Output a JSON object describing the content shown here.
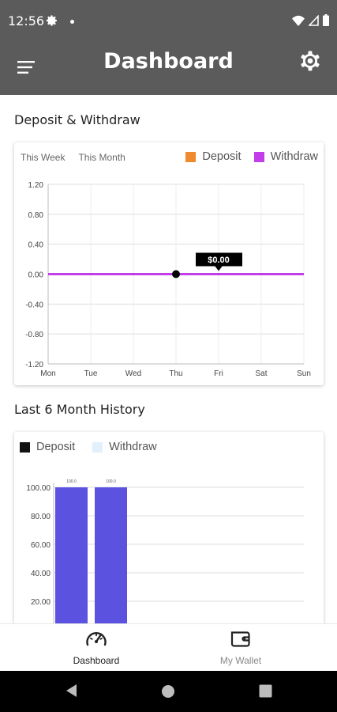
{
  "status_bar": {
    "time": "12:56"
  },
  "app_bar": {
    "title": "Dashboard"
  },
  "section1": {
    "title": "Deposit & Withdraw"
  },
  "card1": {
    "tabs": [
      "This Week",
      "This Month"
    ],
    "legend": [
      {
        "label": "Deposit",
        "color": "#f08a30"
      },
      {
        "label": "Withdraw",
        "color": "#c23ee8"
      }
    ],
    "tooltip": "$0.00"
  },
  "section2": {
    "title": "Last 6 Month History"
  },
  "card2": {
    "legend": [
      {
        "label": "Deposit",
        "color": "#111111"
      },
      {
        "label": "Withdraw",
        "color": "#e2f0fc"
      }
    ]
  },
  "chart_data": [
    {
      "type": "line",
      "categories": [
        "Mon",
        "Tue",
        "Wed",
        "Thu",
        "Fri",
        "Sat",
        "Sun"
      ],
      "yticks": [
        "1.20",
        "0.80",
        "0.40",
        "0.00",
        "-0.40",
        "-0.80",
        "-1.20"
      ],
      "ylim": [
        -1.2,
        1.2
      ],
      "series": [
        {
          "name": "Deposit",
          "color": "#f08a30",
          "values": [
            0,
            0,
            0,
            0,
            0,
            0,
            0
          ]
        },
        {
          "name": "Withdraw",
          "color": "#c23ee8",
          "values": [
            0,
            0,
            0,
            0,
            0,
            0,
            0
          ]
        }
      ],
      "highlight": {
        "category": "Thu",
        "value": 0
      },
      "tooltip": {
        "category": "Fri",
        "label": "$0.00"
      },
      "grid": true
    },
    {
      "type": "bar",
      "yticks": [
        "100.00",
        "80.00",
        "60.00",
        "40.00",
        "20.00"
      ],
      "ylim": [
        0,
        100
      ],
      "bar_color": "#5b52e0",
      "series": [
        {
          "name": "Deposit",
          "values": [
            100,
            100
          ]
        }
      ],
      "data_labels": [
        "100.0",
        "100.0"
      ],
      "grid": true
    }
  ],
  "bottom_nav": {
    "items": [
      {
        "label": "Dashboard",
        "icon": "speedometer-icon"
      },
      {
        "label": "My Wallet",
        "icon": "wallet-icon"
      }
    ]
  }
}
